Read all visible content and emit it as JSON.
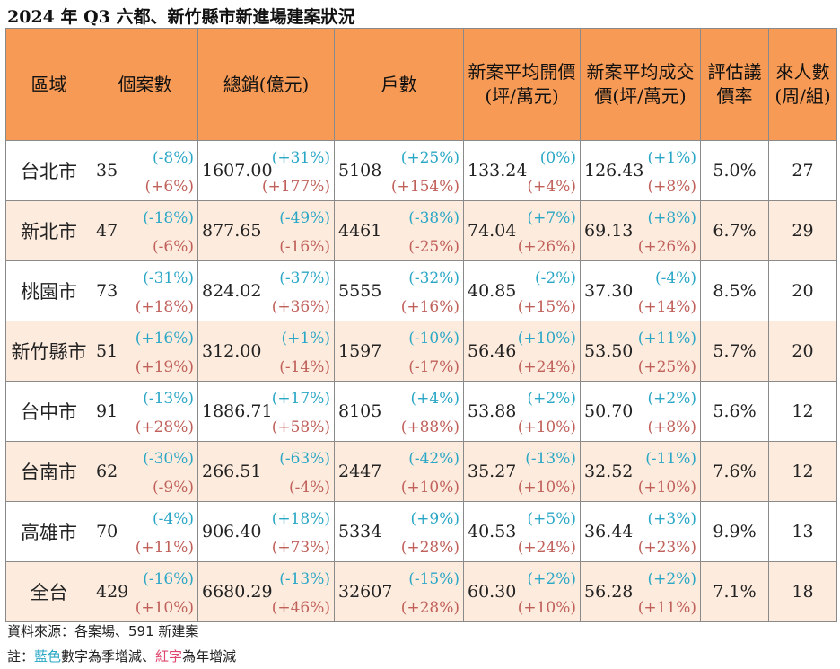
{
  "title": "2024 年 Q3 六都、新竹縣市新進場建案狀況",
  "columns": [
    "區域",
    "個案數",
    "總銷(億元)",
    "戶數",
    "新案平均開價(坪/萬元)",
    "新案平均成交價(坪/萬元)",
    "評估議價率",
    "來人數(周/組)"
  ],
  "rows": [
    {
      "region": "台北市",
      "cases": "35",
      "cases_q": "(-8%)",
      "cases_y": "(+6%)",
      "sales": "1607.00",
      "sales_q": "(+31%)",
      "sales_y": "(+177%)",
      "units": "5108",
      "units_q": "(+25%)",
      "units_y": "(+154%)",
      "ask": "133.24",
      "ask_q": "(0%)",
      "ask_y": "(+4%)",
      "deal": "126.43",
      "deal_q": "(+1%)",
      "deal_y": "(+8%)",
      "bargain": "5.0%",
      "visitors": "27"
    },
    {
      "region": "新北市",
      "cases": "47",
      "cases_q": "(-18%)",
      "cases_y": "(-6%)",
      "sales": "877.65",
      "sales_q": "(-49%)",
      "sales_y": "(-16%)",
      "units": "4461",
      "units_q": "(-38%)",
      "units_y": "(-25%)",
      "ask": "74.04",
      "ask_q": "(+7%)",
      "ask_y": "(+26%)",
      "deal": "69.13",
      "deal_q": "(+8%)",
      "deal_y": "(+26%)",
      "bargain": "6.7%",
      "visitors": "29"
    },
    {
      "region": "桃園市",
      "cases": "73",
      "cases_q": "(-31%)",
      "cases_y": "(+18%)",
      "sales": "824.02",
      "sales_q": "(-37%)",
      "sales_y": "(+36%)",
      "units": "5555",
      "units_q": "(-32%)",
      "units_y": "(+16%)",
      "ask": "40.85",
      "ask_q": "(-2%)",
      "ask_y": "(+15%)",
      "deal": "37.30",
      "deal_q": "(-4%)",
      "deal_y": "(+14%)",
      "bargain": "8.5%",
      "visitors": "20"
    },
    {
      "region": "新竹縣市",
      "cases": "51",
      "cases_q": "(+16%)",
      "cases_y": "(+19%)",
      "sales": "312.00",
      "sales_q": "(+1%)",
      "sales_y": "(-14%)",
      "units": "1597",
      "units_q": "(-10%)",
      "units_y": "(-17%)",
      "ask": "56.46",
      "ask_q": "(+10%)",
      "ask_y": "(+24%)",
      "deal": "53.50",
      "deal_q": "(+11%)",
      "deal_y": "(+25%)",
      "bargain": "5.7%",
      "visitors": "20"
    },
    {
      "region": "台中市",
      "cases": "91",
      "cases_q": "(-13%)",
      "cases_y": "(+28%)",
      "sales": "1886.71",
      "sales_q": "(+17%)",
      "sales_y": "(+58%)",
      "units": "8105",
      "units_q": "(+4%)",
      "units_y": "(+88%)",
      "ask": "53.88",
      "ask_q": "(+2%)",
      "ask_y": "(+10%)",
      "deal": "50.70",
      "deal_q": "(+2%)",
      "deal_y": "(+8%)",
      "bargain": "5.6%",
      "visitors": "12"
    },
    {
      "region": "台南市",
      "cases": "62",
      "cases_q": "(-30%)",
      "cases_y": "(-9%)",
      "sales": "266.51",
      "sales_q": "(-63%)",
      "sales_y": "(-4%)",
      "units": "2447",
      "units_q": "(-42%)",
      "units_y": "(+10%)",
      "ask": "35.27",
      "ask_q": "(-13%)",
      "ask_y": "(+10%)",
      "deal": "32.52",
      "deal_q": "(-11%)",
      "deal_y": "(+10%)",
      "bargain": "7.6%",
      "visitors": "12"
    },
    {
      "region": "高雄市",
      "cases": "70",
      "cases_q": "(-4%)",
      "cases_y": "(+11%)",
      "sales": "906.40",
      "sales_q": "(+18%)",
      "sales_y": "(+73%)",
      "units": "5334",
      "units_q": "(+9%)",
      "units_y": "(+28%)",
      "ask": "40.53",
      "ask_q": "(+5%)",
      "ask_y": "(+24%)",
      "deal": "36.44",
      "deal_q": "(+3%)",
      "deal_y": "(+23%)",
      "bargain": "9.9%",
      "visitors": "13"
    },
    {
      "region": "全台",
      "cases": "429",
      "cases_q": "(-16%)",
      "cases_y": "(+10%)",
      "sales": "6680.29",
      "sales_q": "(-13%)",
      "sales_y": "(+46%)",
      "units": "32607",
      "units_q": "(-15%)",
      "units_y": "(+28%)",
      "ask": "60.30",
      "ask_q": "(+2%)",
      "ask_y": "(+10%)",
      "deal": "56.28",
      "deal_q": "(+2%)",
      "deal_y": "(+11%)",
      "bargain": "7.1%",
      "visitors": "18"
    }
  ],
  "source": "資料來源：各案場、591 新建案",
  "note_prefix": "註：",
  "note_blue": "藍色",
  "note_mid": "數字為季增減、",
  "note_red": "紅字",
  "note_suffix": "為年增減",
  "colors": {
    "header_bg": "#f79a55",
    "row_alt_bg": "#fdebdd",
    "quarter_change": "#2ba7c6",
    "year_change": "#c0605a",
    "note_red": "#e0466d"
  }
}
